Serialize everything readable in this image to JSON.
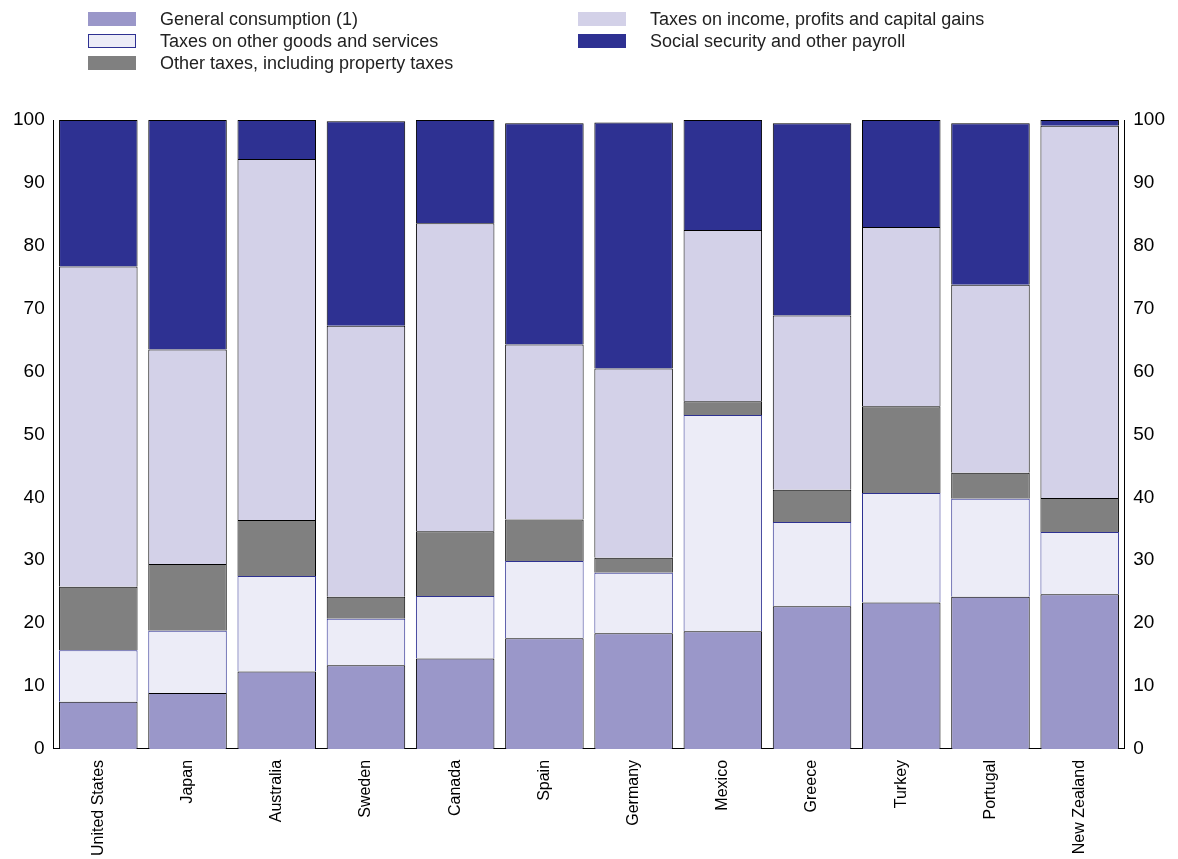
{
  "chart_data": {
    "type": "bar",
    "stacked": true,
    "categories": [
      "United States",
      "Japan",
      "Australia",
      "Sweden",
      "Canada",
      "Spain",
      "Germany",
      "Mexico",
      "Greece",
      "Turkey",
      "Portugal",
      "New Zealand"
    ],
    "series": [
      {
        "name": "General consumption (1)",
        "color": "#9a97c9",
        "values": [
          7.5,
          8.9,
          12.3,
          13.3,
          14.4,
          17.6,
          18.4,
          18.7,
          22.7,
          23.3,
          24.2,
          24.6
        ]
      },
      {
        "name": "Taxes on other goods and services",
        "color": "#ececf7",
        "values": [
          8.2,
          9.9,
          15.2,
          7.4,
          9.9,
          12.3,
          9.6,
          34.4,
          13.4,
          17.4,
          15.6,
          9.9
        ]
      },
      {
        "name": "Other taxes, including property taxes",
        "color": "#808080",
        "values": [
          10.1,
          10.6,
          8.9,
          3.5,
          10.3,
          6.6,
          2.4,
          2.2,
          5.1,
          13.8,
          4.1,
          5.4
        ]
      },
      {
        "name": "Taxes on income, profits and capital gains",
        "color": "#d3d1e8",
        "values": [
          50.9,
          34.1,
          57.4,
          43.1,
          49.0,
          27.8,
          30.1,
          27.2,
          27.7,
          28.5,
          29.9,
          59.2
        ]
      },
      {
        "name": "Social security and other payroll",
        "color": "#2e3192",
        "values": [
          23.3,
          36.5,
          6.2,
          32.5,
          16.4,
          35.2,
          39.1,
          17.5,
          30.6,
          17.0,
          25.7,
          0.9
        ]
      }
    ],
    "ylim": [
      0,
      100
    ],
    "yticks": [
      0,
      10,
      20,
      30,
      40,
      50,
      60,
      70,
      80,
      90,
      100
    ],
    "y2lim": [
      0,
      100
    ],
    "y2ticks": [
      0,
      10,
      20,
      30,
      40,
      50,
      60,
      70,
      80,
      90,
      100
    ],
    "grid": false,
    "legend": "top"
  }
}
